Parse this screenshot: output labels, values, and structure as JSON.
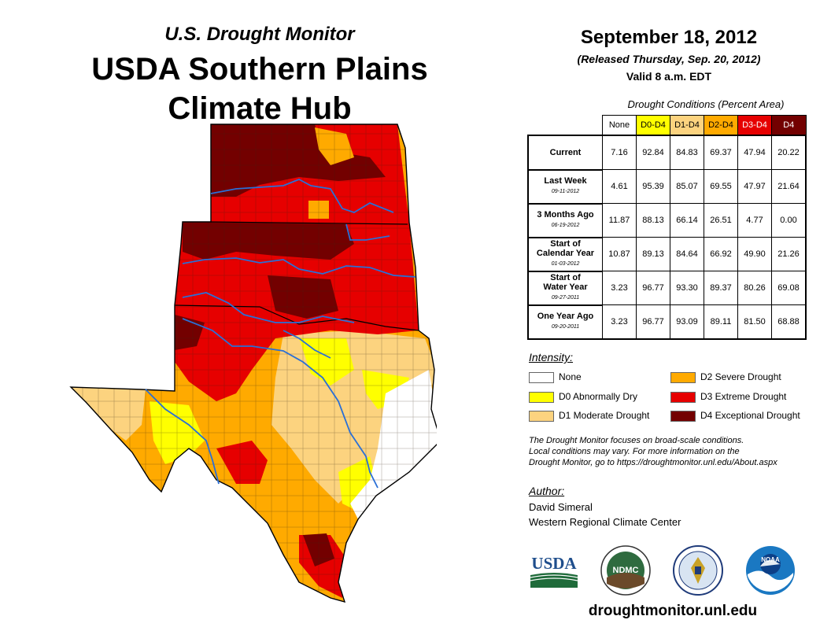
{
  "header": {
    "subtitle": "U.S. Drought Monitor",
    "title_line1": "USDA Southern Plains",
    "title_line2": "Climate Hub"
  },
  "info": {
    "date": "September 18, 2012",
    "released": "(Released Thursday, Sep. 20, 2012)",
    "valid": "Valid 8 a.m. EDT"
  },
  "table": {
    "caption": "Drought Conditions (Percent Area)",
    "columns": [
      {
        "label": "None",
        "color": "#ffffff",
        "text_color": "#000000"
      },
      {
        "label": "D0-D4",
        "color": "#ffff00",
        "text_color": "#000000"
      },
      {
        "label": "D1-D4",
        "color": "#fcd37f",
        "text_color": "#000000"
      },
      {
        "label": "D2-D4",
        "color": "#ffaa00",
        "text_color": "#000000"
      },
      {
        "label": "D3-D4",
        "color": "#e60000",
        "text_color": "#ffffff"
      },
      {
        "label": "D4",
        "color": "#730000",
        "text_color": "#ffffff"
      }
    ],
    "rows": [
      {
        "label": "Current",
        "label2": "",
        "date": "",
        "values": [
          "7.16",
          "92.84",
          "84.83",
          "69.37",
          "47.94",
          "20.22"
        ]
      },
      {
        "label": "Last Week",
        "label2": "",
        "date": "09-11-2012",
        "values": [
          "4.61",
          "95.39",
          "85.07",
          "69.55",
          "47.97",
          "21.64"
        ]
      },
      {
        "label": "3 Months Ago",
        "label2": "",
        "date": "06-19-2012",
        "values": [
          "11.87",
          "88.13",
          "66.14",
          "26.51",
          "4.77",
          "0.00"
        ]
      },
      {
        "label": "Start of",
        "label2": "Calendar Year",
        "date": "01-03-2012",
        "values": [
          "10.87",
          "89.13",
          "84.64",
          "66.92",
          "49.90",
          "21.26"
        ]
      },
      {
        "label": "Start of",
        "label2": "Water Year",
        "date": "09-27-2011",
        "values": [
          "3.23",
          "96.77",
          "93.30",
          "89.37",
          "80.26",
          "69.08"
        ]
      },
      {
        "label": "One Year Ago",
        "label2": "",
        "date": "09-20-2011",
        "values": [
          "3.23",
          "96.77",
          "93.09",
          "89.11",
          "81.50",
          "68.88"
        ]
      }
    ]
  },
  "legend": {
    "heading": "Intensity:",
    "items": [
      {
        "label": "None",
        "color": "#ffffff"
      },
      {
        "label": "D0 Abnormally Dry",
        "color": "#ffff00"
      },
      {
        "label": "D1 Moderate Drought",
        "color": "#fcd37f"
      },
      {
        "label": "D2 Severe Drought",
        "color": "#ffaa00"
      },
      {
        "label": "D3 Extreme Drought",
        "color": "#e60000"
      },
      {
        "label": "D4 Exceptional Drought",
        "color": "#730000"
      }
    ]
  },
  "note": {
    "line1": "The Drought Monitor focuses on broad-scale conditions.",
    "line2": "Local conditions may vary. For more information on the",
    "line3": "Drought Monitor, go to https://droughtmonitor.unl.edu/About.aspx"
  },
  "author": {
    "heading": "Author:",
    "name": "David Simeral",
    "org": "Western Regional Climate Center"
  },
  "logos": {
    "usda": "USDA",
    "ndmc": "NDMC",
    "noaa": "NOAA"
  },
  "website": "droughtmonitor.unl.edu"
}
